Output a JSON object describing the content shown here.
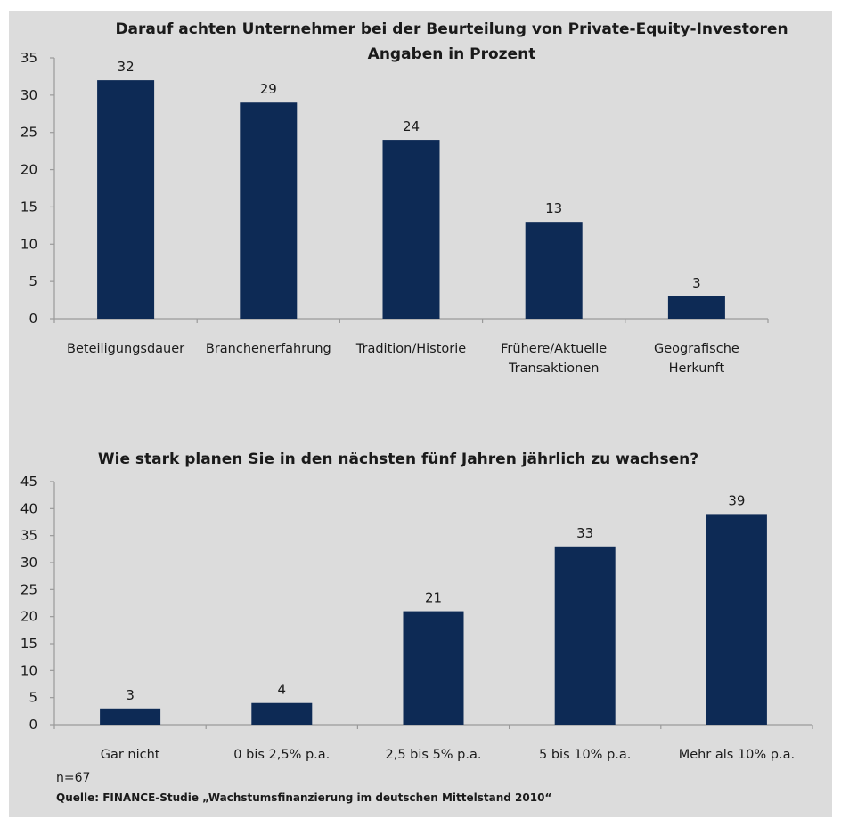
{
  "colors": {
    "bar": "#0d2a55",
    "axis": "#9a9a9a",
    "panel": "#dcdcdc"
  },
  "chart_data": [
    {
      "type": "bar",
      "title": "Darauf achten Unternehmer bei der Beurteilung von Private-Equity-Investoren",
      "subtitle": "Angaben in Prozent",
      "categories": [
        [
          "Beteiligungsdauer"
        ],
        [
          "Branchenerfahrung"
        ],
        [
          "Tradition/Historie"
        ],
        [
          "Frühere/Aktuelle",
          "Transaktionen"
        ],
        [
          "Geografische",
          "Herkunft"
        ]
      ],
      "values": [
        32,
        29,
        24,
        13,
        3
      ],
      "ylim": [
        0,
        35
      ],
      "yticks": [
        0,
        5,
        10,
        15,
        20,
        25,
        30,
        35
      ],
      "grid": false
    },
    {
      "type": "bar",
      "title": "Wie stark planen Sie in den nächsten fünf Jahren jährlich zu wachsen?",
      "categories": [
        [
          "Gar nicht"
        ],
        [
          "0 bis 2,5% p.a."
        ],
        [
          "2,5 bis 5% p.a."
        ],
        [
          "5 bis 10% p.a."
        ],
        [
          "Mehr als 10% p.a."
        ]
      ],
      "values": [
        3,
        4,
        21,
        33,
        39
      ],
      "ylim": [
        0,
        45
      ],
      "yticks": [
        0,
        5,
        10,
        15,
        20,
        25,
        30,
        35,
        40,
        45
      ],
      "grid": false
    }
  ],
  "footer": {
    "n": "n=67",
    "source": "Quelle: FINANCE-Studie „Wachstumsfinanzierung im deutschen Mittelstand 2010“"
  }
}
